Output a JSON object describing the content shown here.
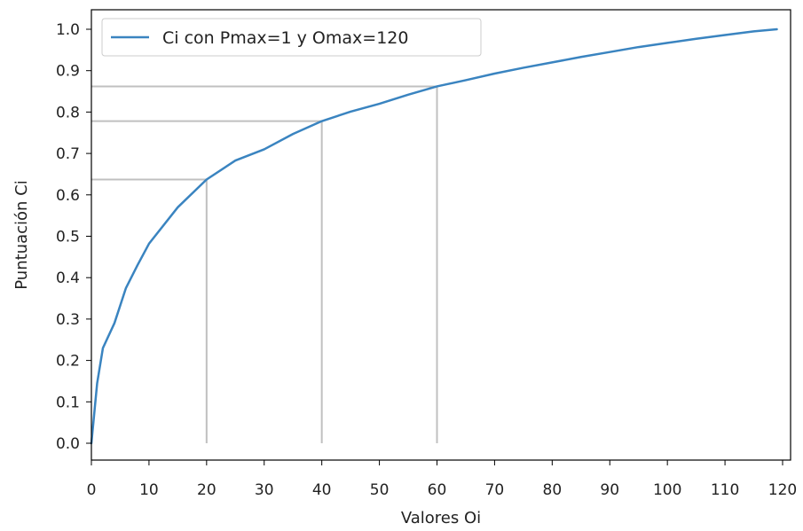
{
  "chart_data": {
    "type": "line",
    "xlabel": "Valores Oi",
    "ylabel": "Puntuación Ci",
    "xlim": [
      0,
      120
    ],
    "ylim": [
      0,
      1.0
    ],
    "xticks": [
      "0",
      "10",
      "20",
      "30",
      "40",
      "50",
      "60",
      "70",
      "80",
      "90",
      "100",
      "110",
      "120"
    ],
    "yticks": [
      "0.0",
      "0.1",
      "0.2",
      "0.3",
      "0.4",
      "0.5",
      "0.6",
      "0.7",
      "0.8",
      "0.9",
      "1.0"
    ],
    "legend_position": "top-left",
    "grid": false,
    "series": [
      {
        "name": "Ci con Pmax=1 y Omax=120",
        "color": "#3a84c0",
        "x": [
          0,
          1,
          2,
          4,
          6,
          8,
          10,
          15,
          20,
          25,
          30,
          35,
          40,
          45,
          50,
          55,
          60,
          65,
          70,
          75,
          80,
          85,
          90,
          95,
          100,
          105,
          110,
          115,
          119
        ],
        "y": [
          0.0,
          0.145,
          0.23,
          0.29,
          0.375,
          0.43,
          0.482,
          0.57,
          0.637,
          0.683,
          0.71,
          0.747,
          0.778,
          0.801,
          0.82,
          0.842,
          0.862,
          0.877,
          0.893,
          0.907,
          0.92,
          0.933,
          0.945,
          0.957,
          0.967,
          0.977,
          0.986,
          0.995,
          1.0
        ]
      }
    ],
    "reference_lines": [
      {
        "x": 20,
        "y": 0.637
      },
      {
        "x": 40,
        "y": 0.778
      },
      {
        "x": 60,
        "y": 0.862
      }
    ],
    "reference_color": "#c0c0c0"
  }
}
